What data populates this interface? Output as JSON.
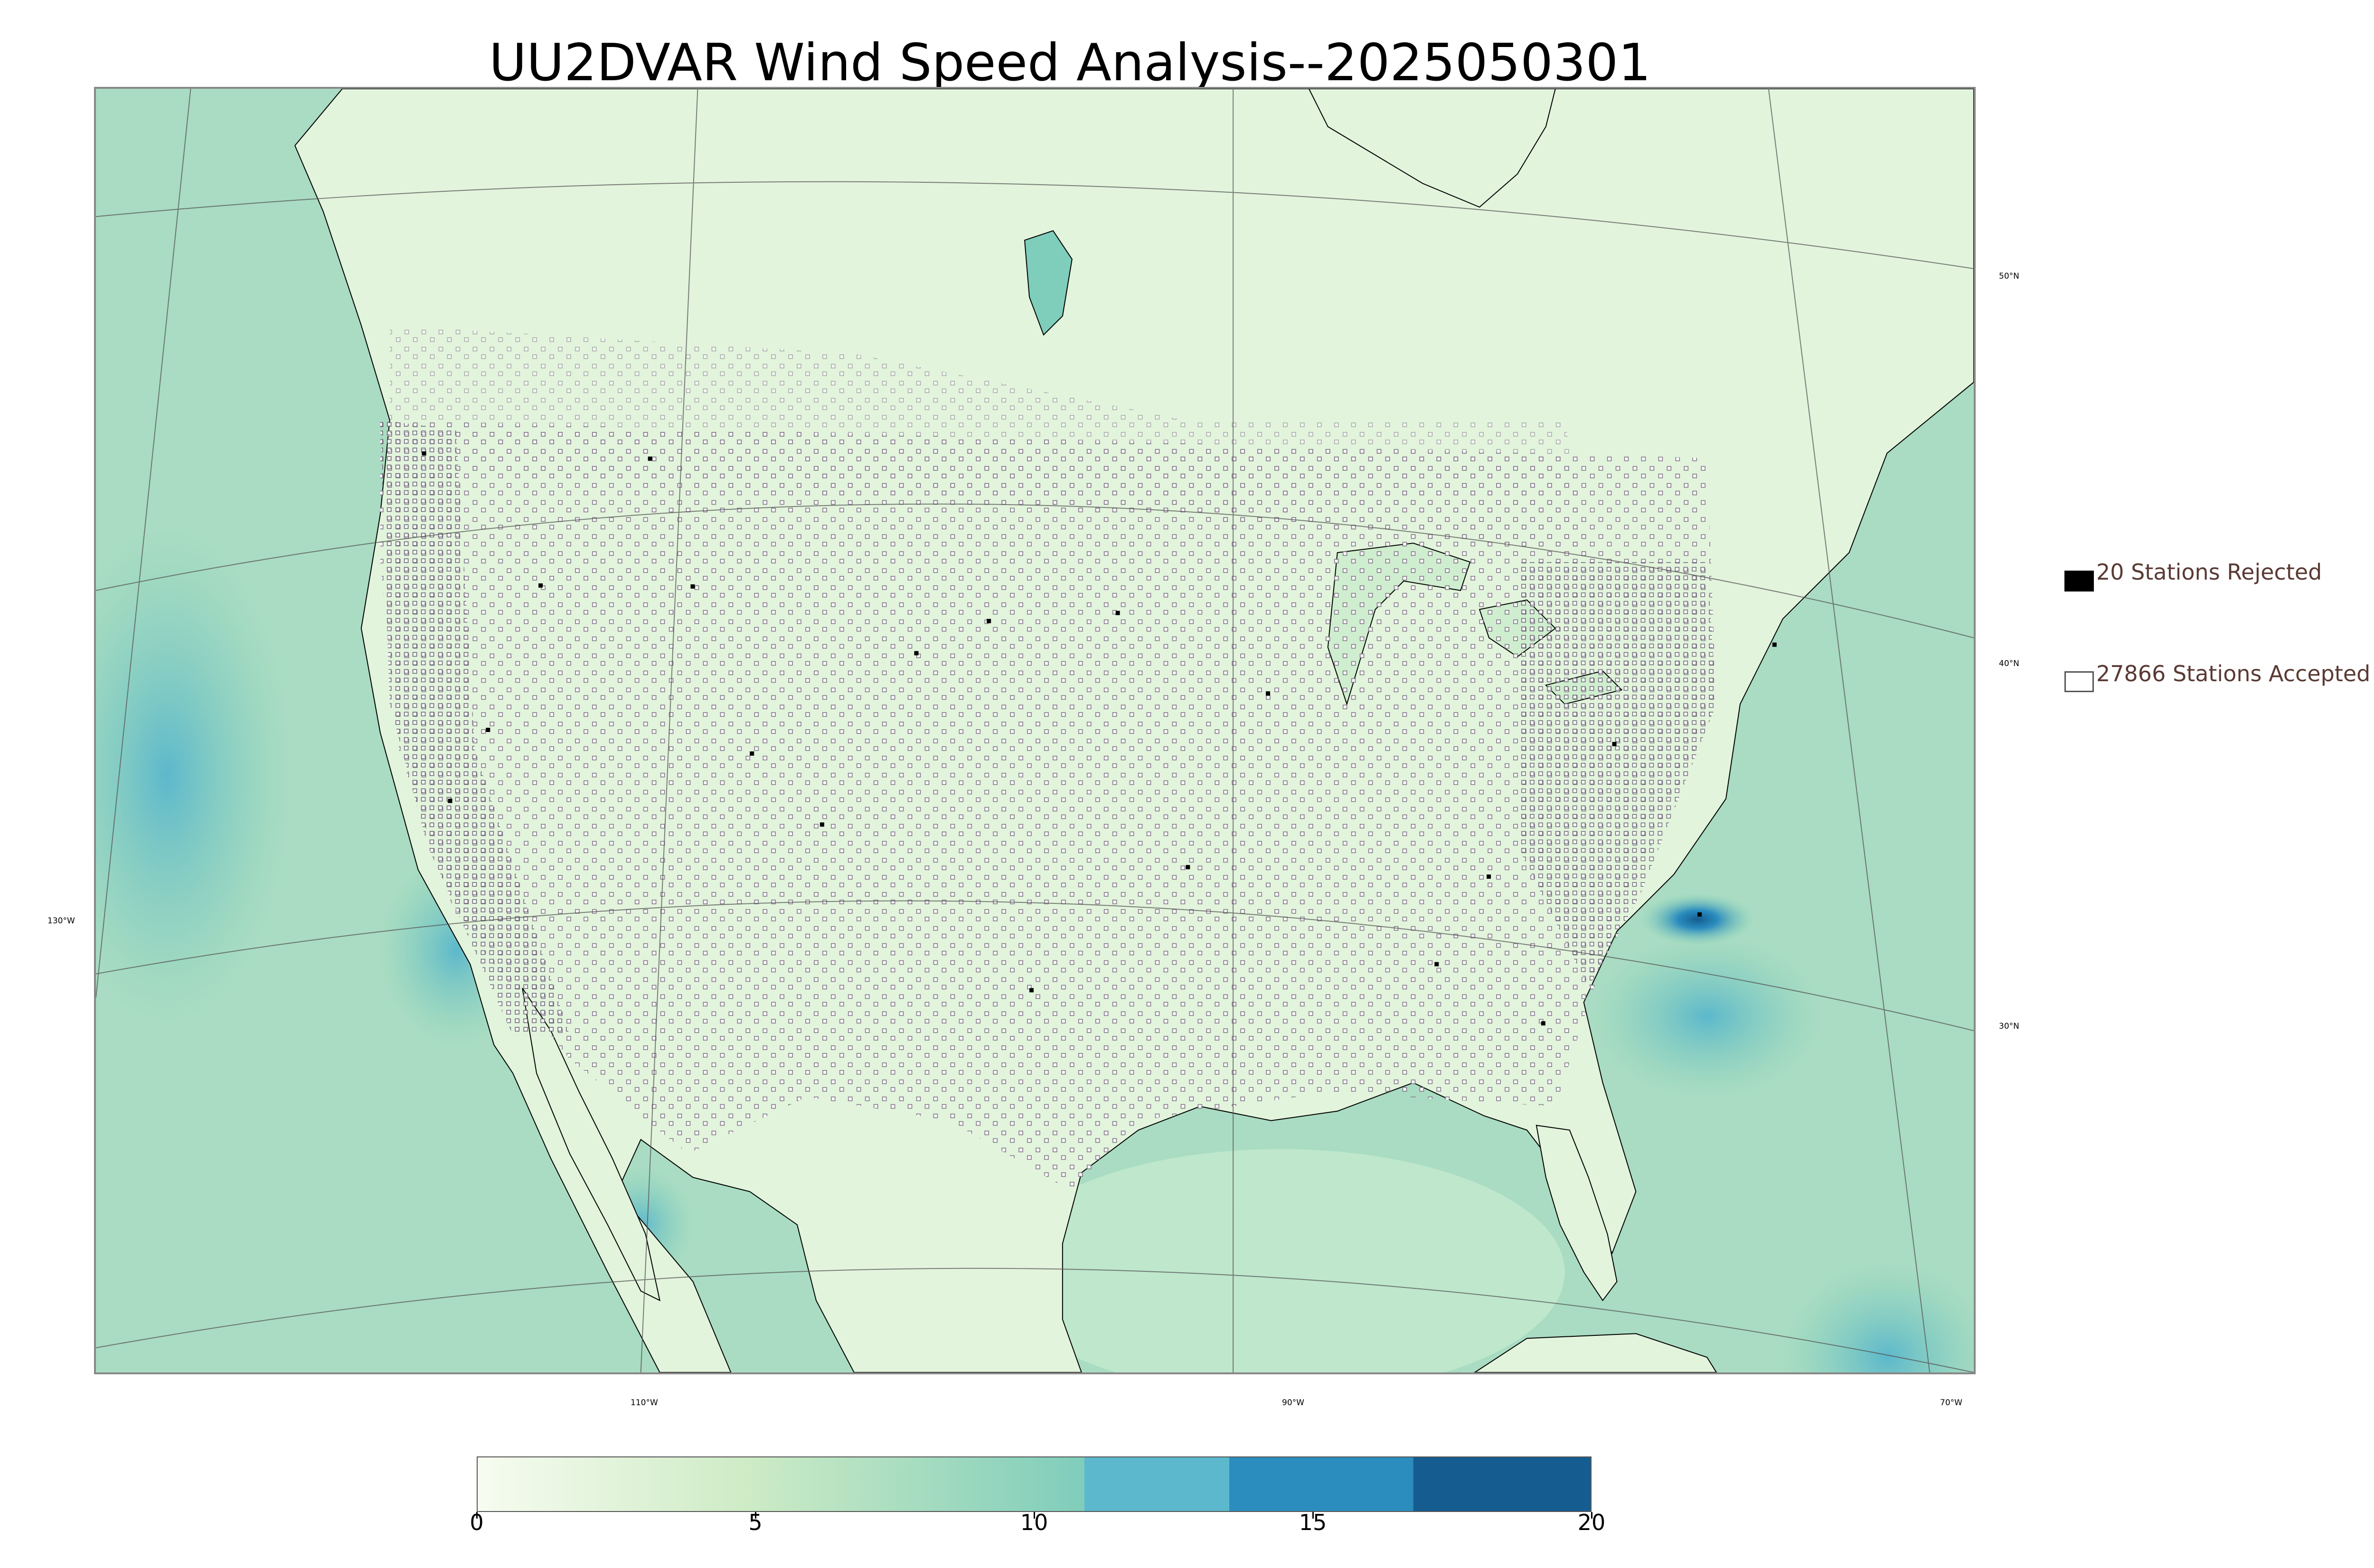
{
  "title": "UU2DVAR Wind Speed Analysis--2025050301",
  "graticule": {
    "lon_labels": [
      "130°W",
      "110°W",
      "90°W",
      "70°W"
    ],
    "lat_labels": [
      "50°N",
      "40°N",
      "30°N"
    ]
  },
  "legend": {
    "rejected": {
      "label": "20 Stations Rejected",
      "color": "#000000"
    },
    "accepted": {
      "label": "27866 Stations Accepted",
      "color": "#ffffff"
    }
  },
  "colorbar": {
    "min": 0,
    "max": 20,
    "ticks": [
      "0",
      "5",
      "10",
      "15",
      "20"
    ],
    "stops": [
      {
        "from": 0,
        "to": 10.9,
        "color_start": "#f7fcf0",
        "color_end": "#7fcdbb",
        "gradient": true
      },
      {
        "from": 10.9,
        "to": 13.5,
        "color": "#5cb8cc"
      },
      {
        "from": 13.5,
        "to": 16.8,
        "color": "#2b8cbe"
      },
      {
        "from": 16.8,
        "to": 20,
        "color": "#155d90"
      }
    ]
  },
  "colors": {
    "ocean": "#a6dcc0",
    "land": "#e6f5e0",
    "coast": "#000000",
    "station_accepted": "#ffffff",
    "station_rejected": "#000000"
  }
}
